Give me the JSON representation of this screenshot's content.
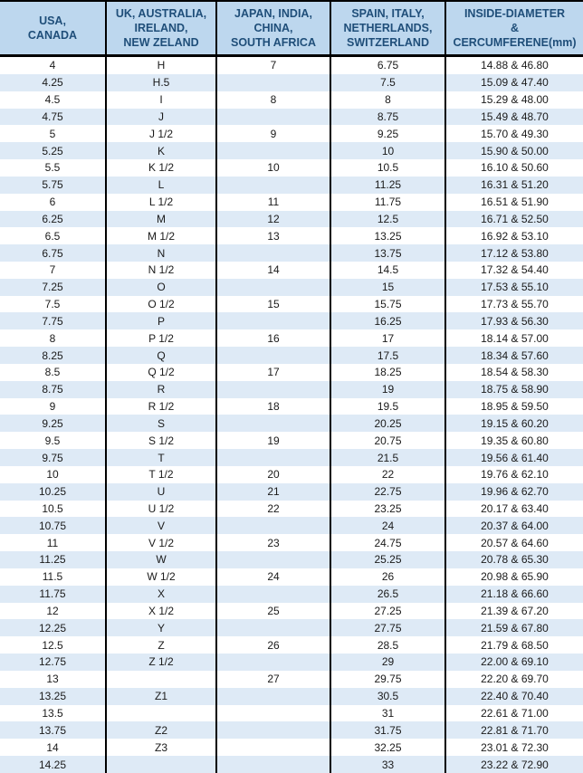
{
  "colors": {
    "header_bg": "#BDD7EE",
    "header_text": "#1F4E79",
    "stripe_bg": "#DEEAF6",
    "row_bg": "#FFFFFF",
    "border": "#000000",
    "body_text": "#1A1A1A"
  },
  "chart_data": {
    "type": "table",
    "columns": [
      "USA,\nCANADA",
      "UK, AUSTRALIA,\nIRELAND,\nNEW ZELAND",
      "JAPAN, INDIA,\nCHINA,\nSOUTH AFRICA",
      "SPAIN, ITALY,\nNETHERLANDS,\nSWITZERLAND",
      "INSIDE-DIAMETER\n&\nCERCUMFERENE(mm)"
    ],
    "rows": [
      [
        "4",
        "H",
        "7",
        "6.75",
        "14.88 & 46.80"
      ],
      [
        "4.25",
        "H.5",
        "",
        "7.5",
        "15.09 & 47.40"
      ],
      [
        "4.5",
        "I",
        "8",
        "8",
        "15.29 & 48.00"
      ],
      [
        "4.75",
        "J",
        "",
        "8.75",
        "15.49 & 48.70"
      ],
      [
        "5",
        "J 1/2",
        "9",
        "9.25",
        "15.70 & 49.30"
      ],
      [
        "5.25",
        "K",
        "",
        "10",
        "15.90 & 50.00"
      ],
      [
        "5.5",
        "K 1/2",
        "10",
        "10.5",
        "16.10 & 50.60"
      ],
      [
        "5.75",
        "L",
        "",
        "11.25",
        "16.31 & 51.20"
      ],
      [
        "6",
        "L 1/2",
        "11",
        "11.75",
        "16.51 & 51.90"
      ],
      [
        "6.25",
        "M",
        "12",
        "12.5",
        "16.71 & 52.50"
      ],
      [
        "6.5",
        "M 1/2",
        "13",
        "13.25",
        "16.92 & 53.10"
      ],
      [
        "6.75",
        "N",
        "",
        "13.75",
        "17.12 & 53.80"
      ],
      [
        "7",
        "N 1/2",
        "14",
        "14.5",
        "17.32 & 54.40"
      ],
      [
        "7.25",
        "O",
        "",
        "15",
        "17.53 & 55.10"
      ],
      [
        "7.5",
        "O 1/2",
        "15",
        "15.75",
        "17.73 & 55.70"
      ],
      [
        "7.75",
        "P",
        "",
        "16.25",
        "17.93 & 56.30"
      ],
      [
        "8",
        "P 1/2",
        "16",
        "17",
        "18.14 & 57.00"
      ],
      [
        "8.25",
        "Q",
        "",
        "17.5",
        "18.34 & 57.60"
      ],
      [
        "8.5",
        "Q 1/2",
        "17",
        "18.25",
        "18.54 & 58.30"
      ],
      [
        "8.75",
        "R",
        "",
        "19",
        "18.75 & 58.90"
      ],
      [
        "9",
        "R 1/2",
        "18",
        "19.5",
        "18.95 & 59.50"
      ],
      [
        "9.25",
        "S",
        "",
        "20.25",
        "19.15 & 60.20"
      ],
      [
        "9.5",
        "S 1/2",
        "19",
        "20.75",
        "19.35 & 60.80"
      ],
      [
        "9.75",
        "T",
        "",
        "21.5",
        "19.56 & 61.40"
      ],
      [
        "10",
        "T 1/2",
        "20",
        "22",
        "19.76 & 62.10"
      ],
      [
        "10.25",
        "U",
        "21",
        "22.75",
        "19.96 & 62.70"
      ],
      [
        "10.5",
        "U 1/2",
        "22",
        "23.25",
        "20.17 & 63.40"
      ],
      [
        "10.75",
        "V",
        "",
        "24",
        "20.37 & 64.00"
      ],
      [
        "11",
        "V 1/2",
        "23",
        "24.75",
        "20.57 & 64.60"
      ],
      [
        "11.25",
        "W",
        "",
        "25.25",
        "20.78 & 65.30"
      ],
      [
        "11.5",
        "W 1/2",
        "24",
        "26",
        "20.98 & 65.90"
      ],
      [
        "11.75",
        "X",
        "",
        "26.5",
        "21.18 & 66.60"
      ],
      [
        "12",
        "X 1/2",
        "25",
        "27.25",
        "21.39 & 67.20"
      ],
      [
        "12.25",
        "Y",
        "",
        "27.75",
        "21.59 & 67.80"
      ],
      [
        "12.5",
        "Z",
        "26",
        "28.5",
        "21.79 & 68.50"
      ],
      [
        "12.75",
        "Z 1/2",
        "",
        "29",
        "22.00 & 69.10"
      ],
      [
        "13",
        "",
        "27",
        "29.75",
        "22.20 & 69.70"
      ],
      [
        "13.25",
        "Z1",
        "",
        "30.5",
        "22.40 & 70.40"
      ],
      [
        "13.5",
        "",
        "",
        "31",
        "22.61 & 71.00"
      ],
      [
        "13.75",
        "Z2",
        "",
        "31.75",
        "22.81 & 71.70"
      ],
      [
        "14",
        "Z3",
        "",
        "32.25",
        "23.01 & 72.30"
      ],
      [
        "14.25",
        "",
        "",
        "33",
        "23.22 & 72.90"
      ]
    ]
  }
}
